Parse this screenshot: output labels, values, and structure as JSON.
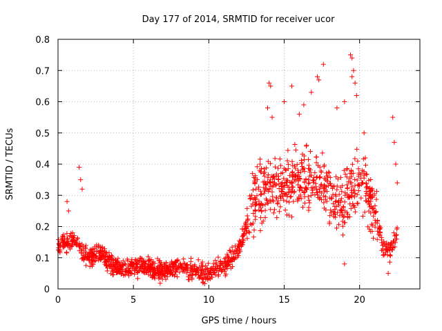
{
  "chart_data": {
    "type": "scatter",
    "title": "Day 177 of 2014, SRMTID for receiver ucor",
    "xlabel": "GPS time / hours",
    "ylabel": "SRMTID / TECUs",
    "xlim": [
      0,
      24
    ],
    "ylim": [
      0,
      0.8
    ],
    "xticks": [
      0,
      5,
      10,
      15,
      20
    ],
    "xtick_labels": [
      "0",
      "5",
      "10",
      "15",
      "20"
    ],
    "yticks": [
      0,
      0.1,
      0.2,
      0.3,
      0.4,
      0.5,
      0.6,
      0.7,
      0.8
    ],
    "ytick_labels": [
      "0",
      "0.1",
      "0.2",
      "0.3",
      "0.4",
      "0.5",
      "0.6",
      "0.7",
      "0.8"
    ],
    "grid": true,
    "marker": "plus",
    "series": [
      {
        "name": "SRMTID",
        "color": "#ff0000",
        "trend": [
          [
            0.0,
            0.14
          ],
          [
            0.5,
            0.15
          ],
          [
            1.0,
            0.16
          ],
          [
            1.5,
            0.13
          ],
          [
            2.0,
            0.1
          ],
          [
            2.5,
            0.11
          ],
          [
            3.0,
            0.11
          ],
          [
            3.5,
            0.08
          ],
          [
            4.0,
            0.07
          ],
          [
            5.0,
            0.07
          ],
          [
            6.0,
            0.07
          ],
          [
            7.0,
            0.06
          ],
          [
            8.0,
            0.07
          ],
          [
            9.0,
            0.06
          ],
          [
            10.0,
            0.05
          ],
          [
            10.5,
            0.07
          ],
          [
            11.0,
            0.08
          ],
          [
            11.5,
            0.1
          ],
          [
            12.0,
            0.12
          ],
          [
            12.5,
            0.2
          ],
          [
            13.0,
            0.28
          ],
          [
            13.5,
            0.3
          ],
          [
            14.0,
            0.33
          ],
          [
            14.5,
            0.33
          ],
          [
            15.0,
            0.34
          ],
          [
            15.5,
            0.35
          ],
          [
            16.0,
            0.35
          ],
          [
            16.5,
            0.35
          ],
          [
            17.0,
            0.34
          ],
          [
            17.5,
            0.33
          ],
          [
            18.0,
            0.3
          ],
          [
            18.5,
            0.28
          ],
          [
            19.0,
            0.28
          ],
          [
            19.5,
            0.33
          ],
          [
            20.0,
            0.35
          ],
          [
            20.5,
            0.3
          ],
          [
            21.0,
            0.25
          ],
          [
            21.5,
            0.14
          ],
          [
            22.0,
            0.12
          ],
          [
            22.5,
            0.18
          ]
        ],
        "peaks": [
          [
            0.6,
            0.28
          ],
          [
            0.7,
            0.25
          ],
          [
            1.4,
            0.39
          ],
          [
            1.5,
            0.35
          ],
          [
            1.6,
            0.32
          ],
          [
            14.0,
            0.66
          ],
          [
            14.1,
            0.65
          ],
          [
            13.9,
            0.58
          ],
          [
            14.2,
            0.55
          ],
          [
            15.0,
            0.6
          ],
          [
            15.5,
            0.65
          ],
          [
            16.0,
            0.56
          ],
          [
            16.3,
            0.59
          ],
          [
            16.8,
            0.63
          ],
          [
            17.2,
            0.68
          ],
          [
            17.3,
            0.67
          ],
          [
            17.6,
            0.72
          ],
          [
            18.5,
            0.58
          ],
          [
            19.0,
            0.6
          ],
          [
            19.4,
            0.75
          ],
          [
            19.5,
            0.74
          ],
          [
            19.6,
            0.7
          ],
          [
            19.5,
            0.68
          ],
          [
            19.7,
            0.66
          ],
          [
            19.8,
            0.62
          ],
          [
            20.3,
            0.5
          ],
          [
            22.2,
            0.55
          ],
          [
            22.3,
            0.47
          ],
          [
            22.4,
            0.4
          ],
          [
            22.5,
            0.34
          ],
          [
            12.9,
            0.37
          ],
          [
            13.4,
            0.4
          ],
          [
            21.9,
            0.05
          ],
          [
            19.0,
            0.08
          ]
        ]
      }
    ]
  }
}
